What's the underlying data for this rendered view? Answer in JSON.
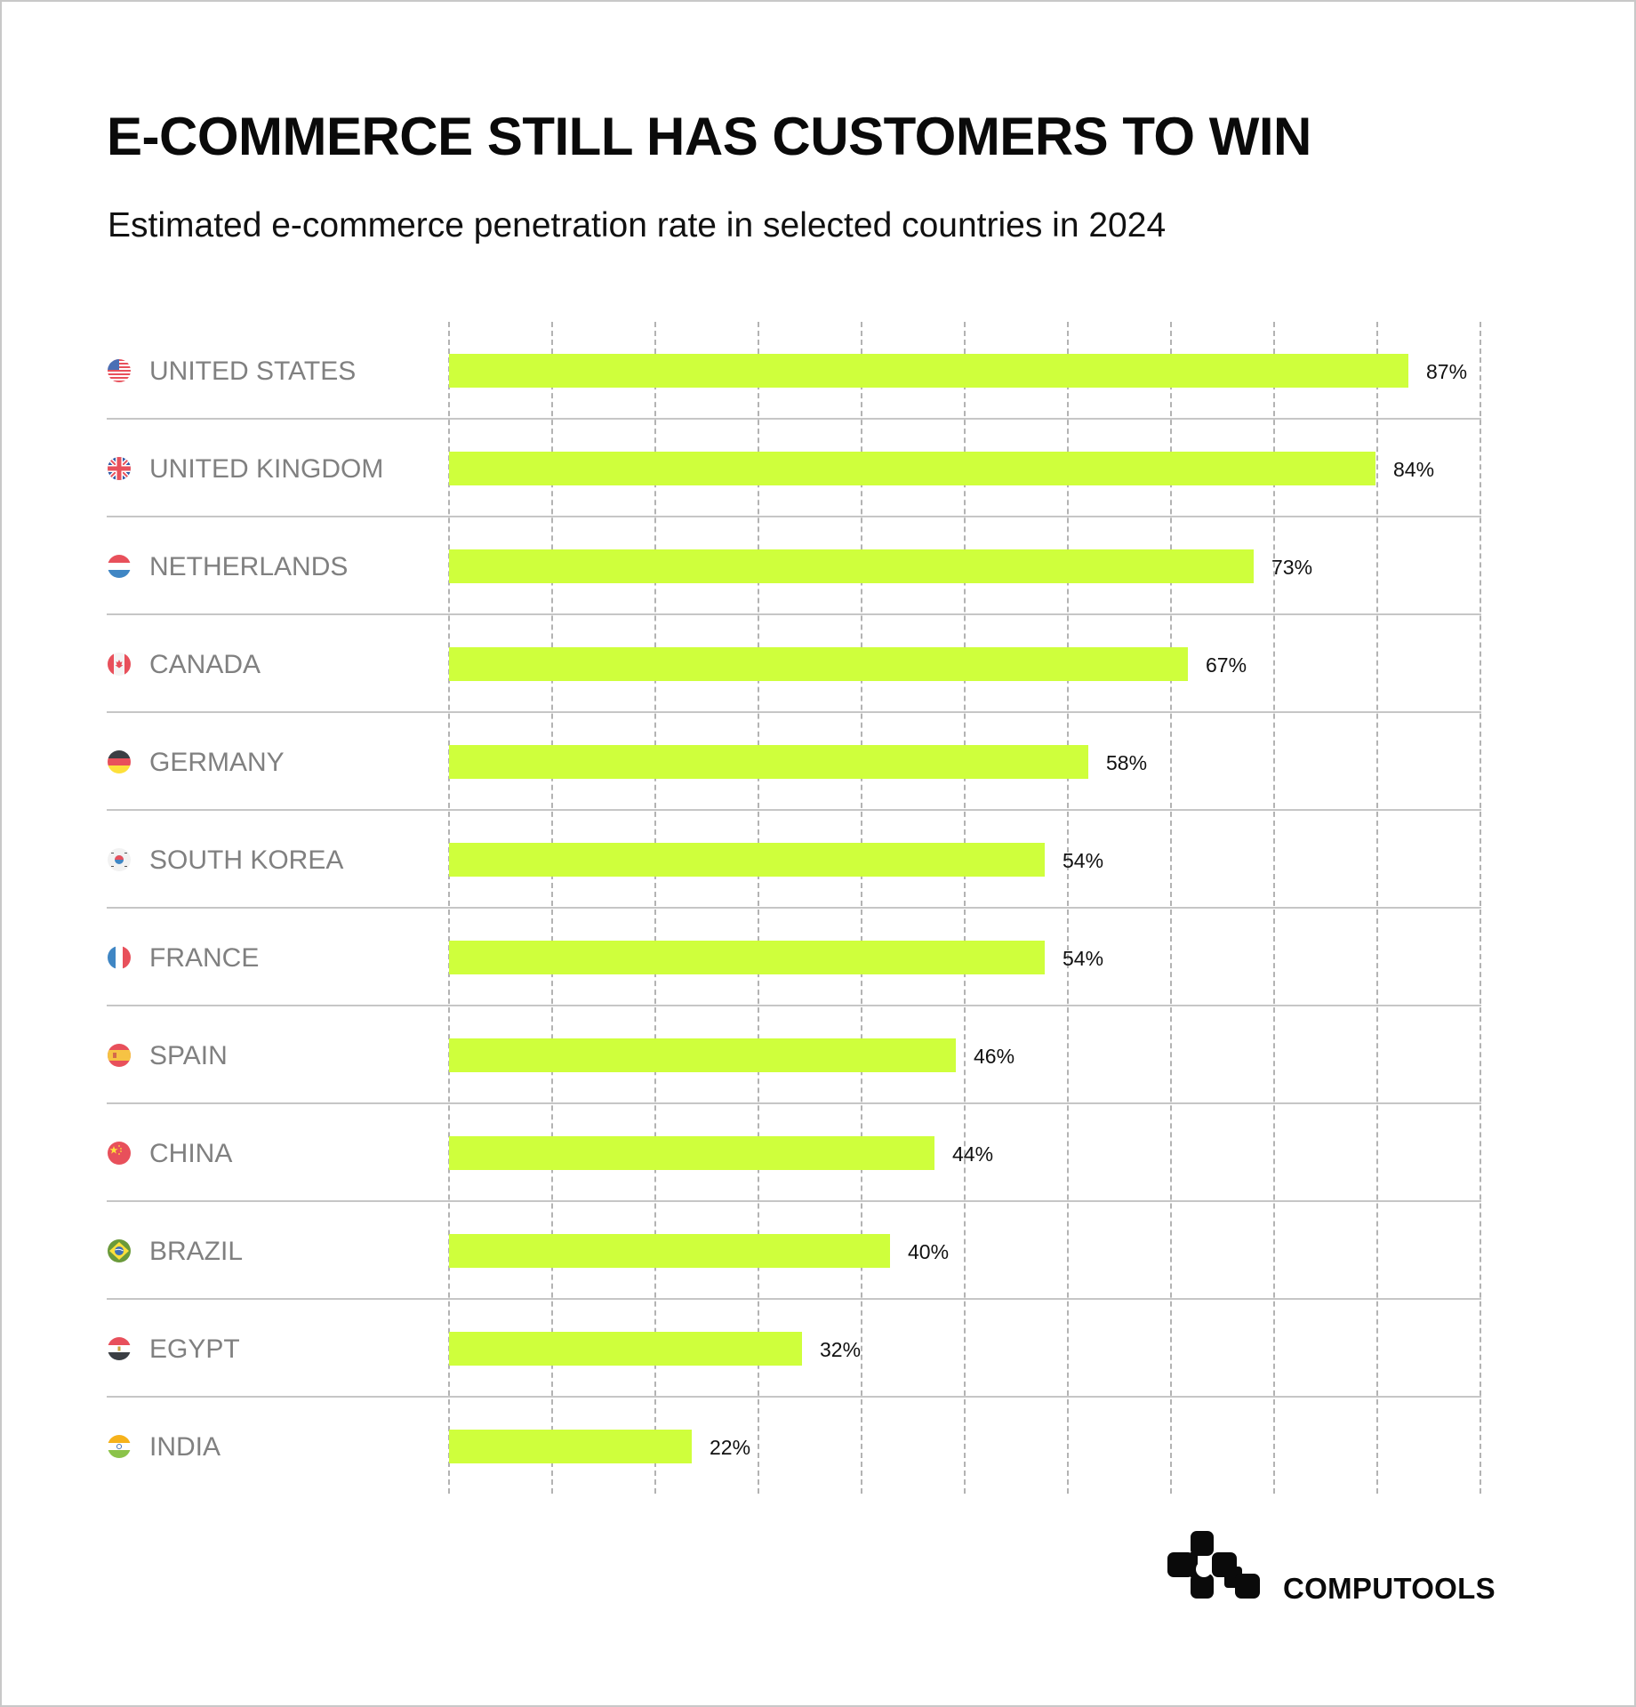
{
  "header": {
    "title": "E-COMMERCE STILL HAS CUSTOMERS TO WIN",
    "subtitle": "Estimated e-commerce penetration rate in selected countries in 2024"
  },
  "colors": {
    "bar": "#CFFF3C",
    "label": "#808080",
    "value": "#111111",
    "gridline": "#B3B3B3",
    "separator": "#C6C6C6",
    "border": "#C8C8C8"
  },
  "rows": [
    {
      "country": "UNITED STATES",
      "flag": "us-flag-icon",
      "value": 87,
      "value_label": "87%"
    },
    {
      "country": "UNITED KINGDOM",
      "flag": "uk-flag-icon",
      "value": 84,
      "value_label": "84%"
    },
    {
      "country": "NETHERLANDS",
      "flag": "netherlands-flag-icon",
      "value": 73,
      "value_label": "73%"
    },
    {
      "country": "CANADA",
      "flag": "canada-flag-icon",
      "value": 67,
      "value_label": "67%"
    },
    {
      "country": "GERMANY",
      "flag": "germany-flag-icon",
      "value": 58,
      "value_label": "58%"
    },
    {
      "country": "SOUTH KOREA",
      "flag": "south-korea-flag-icon",
      "value": 54,
      "value_label": "54%"
    },
    {
      "country": "FRANCE",
      "flag": "france-flag-icon",
      "value": 54,
      "value_label": "54%"
    },
    {
      "country": "SPAIN",
      "flag": "spain-flag-icon",
      "value": 46,
      "value_label": "46%"
    },
    {
      "country": "CHINA",
      "flag": "china-flag-icon",
      "value": 44,
      "value_label": "44%"
    },
    {
      "country": "BRAZIL",
      "flag": "brazil-flag-icon",
      "value": 40,
      "value_label": "40%"
    },
    {
      "country": "EGYPT",
      "flag": "egypt-flag-icon",
      "value": 32,
      "value_label": "32%"
    },
    {
      "country": "INDIA",
      "flag": "india-flag-icon",
      "value": 22,
      "value_label": "22%"
    }
  ],
  "brand": {
    "name": "COMPUTOOLS",
    "logo_icon": "computools-logo-icon"
  },
  "chart_data": {
    "type": "bar",
    "orientation": "horizontal",
    "title": "E-COMMERCE STILL HAS CUSTOMERS TO WIN",
    "subtitle": "Estimated e-commerce penetration rate in selected countries in 2024",
    "categories": [
      "UNITED STATES",
      "UNITED KINGDOM",
      "NETHERLANDS",
      "CANADA",
      "GERMANY",
      "SOUTH KOREA",
      "FRANCE",
      "SPAIN",
      "CHINA",
      "BRAZIL",
      "EGYPT",
      "INDIA"
    ],
    "values": [
      87,
      84,
      73,
      67,
      58,
      54,
      54,
      46,
      44,
      40,
      32,
      22
    ],
    "value_labels": [
      "87%",
      "84%",
      "73%",
      "67%",
      "58%",
      "54%",
      "54%",
      "46%",
      "44%",
      "40%",
      "32%",
      "22%"
    ],
    "xlabel": "",
    "ylabel": "",
    "unit": "%",
    "grid": "vertical dashed, no tick labels",
    "legend": "none",
    "source_brand": "COMPUTOOLS"
  }
}
